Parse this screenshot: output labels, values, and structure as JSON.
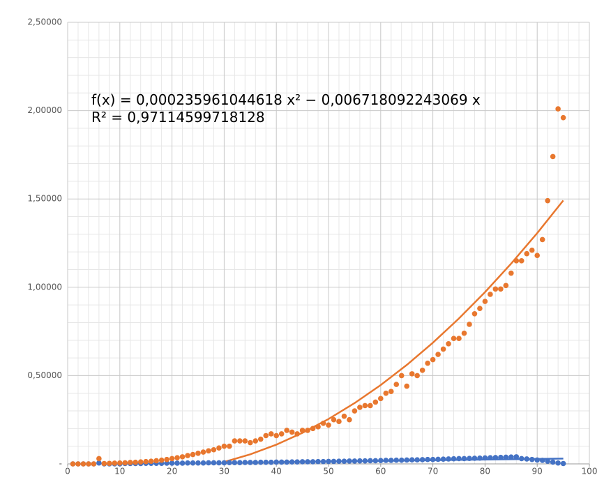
{
  "chart_data": {
    "type": "scatter",
    "annotations": [
      "f(x) = 0,000235961044618 x² − 0,006718092243069 x",
      "R² = 0,97114599718128"
    ],
    "xlim": [
      0,
      100
    ],
    "ylim": [
      0,
      2.5
    ],
    "xticks": [
      0,
      10,
      20,
      30,
      40,
      50,
      60,
      70,
      80,
      90,
      100
    ],
    "yticks": [
      {
        "value": 0,
        "label": "-"
      },
      {
        "value": 0.5,
        "label": "0,50000"
      },
      {
        "value": 1,
        "label": "1,00000"
      },
      {
        "value": 1.5,
        "label": "1,50000"
      },
      {
        "value": 2,
        "label": "2,00000"
      },
      {
        "value": 2.5,
        "label": "2,50000"
      }
    ],
    "grid": true,
    "x": [
      1,
      2,
      3,
      4,
      5,
      6,
      7,
      8,
      9,
      10,
      11,
      12,
      13,
      14,
      15,
      16,
      17,
      18,
      19,
      20,
      21,
      22,
      23,
      24,
      25,
      26,
      27,
      28,
      29,
      30,
      31,
      32,
      33,
      34,
      35,
      36,
      37,
      38,
      39,
      40,
      41,
      42,
      43,
      44,
      45,
      46,
      47,
      48,
      49,
      50,
      51,
      52,
      53,
      54,
      55,
      56,
      57,
      58,
      59,
      60,
      61,
      62,
      63,
      64,
      65,
      66,
      67,
      68,
      69,
      70,
      71,
      72,
      73,
      74,
      75,
      76,
      77,
      78,
      79,
      80,
      81,
      82,
      83,
      84,
      85,
      86,
      87,
      88,
      89,
      90,
      91,
      92,
      93,
      94,
      95
    ],
    "series": [
      {
        "color": "#4472c4",
        "values": [
          0,
          0,
          0,
          0,
          0,
          0.005,
          0,
          0,
          0,
          0,
          0.002,
          0.002,
          0.002,
          0.002,
          0.003,
          0.003,
          0.003,
          0.003,
          0.004,
          0.004,
          0.004,
          0.004,
          0.005,
          0.005,
          0.005,
          0.005,
          0.006,
          0.006,
          0.006,
          0.006,
          0.007,
          0.007,
          0.007,
          0.008,
          0.008,
          0.008,
          0.009,
          0.009,
          0.009,
          0.01,
          0.01,
          0.01,
          0.011,
          0.011,
          0.012,
          0.012,
          0.012,
          0.013,
          0.013,
          0.014,
          0.014,
          0.015,
          0.015,
          0.016,
          0.016,
          0.017,
          0.017,
          0.018,
          0.018,
          0.019,
          0.02,
          0.02,
          0.021,
          0.021,
          0.022,
          0.023,
          0.023,
          0.024,
          0.025,
          0.025,
          0.026,
          0.027,
          0.028,
          0.029,
          0.03,
          0.03,
          0.031,
          0.032,
          0.033,
          0.034,
          0.035,
          0.036,
          0.037,
          0.038,
          0.039,
          0.04,
          0.03,
          0.028,
          0.025,
          0.022,
          0.02,
          0.015,
          0.01,
          0.005,
          0.002
        ]
      },
      {
        "color": "#e8772e",
        "values": [
          0,
          0,
          0,
          0,
          0,
          0.03,
          0.002,
          0.003,
          0.004,
          0.005,
          0.006,
          0.008,
          0.009,
          0.011,
          0.013,
          0.015,
          0.018,
          0.021,
          0.025,
          0.03,
          0.035,
          0.04,
          0.047,
          0.053,
          0.06,
          0.067,
          0.074,
          0.08,
          0.09,
          0.1,
          0.1,
          0.13,
          0.13,
          0.13,
          0.12,
          0.13,
          0.14,
          0.16,
          0.17,
          0.16,
          0.17,
          0.19,
          0.18,
          0.17,
          0.19,
          0.19,
          0.2,
          0.21,
          0.23,
          0.22,
          0.25,
          0.24,
          0.27,
          0.25,
          0.3,
          0.32,
          0.33,
          0.33,
          0.35,
          0.37,
          0.4,
          0.41,
          0.45,
          0.5,
          0.44,
          0.51,
          0.5,
          0.53,
          0.57,
          0.59,
          0.62,
          0.65,
          0.68,
          0.71,
          0.71,
          0.74,
          0.79,
          0.85,
          0.88,
          0.92,
          0.96,
          0.99,
          0.99,
          1.01,
          1.08,
          1.15,
          1.15,
          1.19,
          1.21,
          1.18,
          1.27,
          1.49,
          1.74,
          2.01,
          1.96
        ]
      }
    ],
    "trendlines": [
      {
        "color": "#4472c4",
        "x": [
          40,
          95
        ],
        "values": [
          0.01,
          0.03
        ]
      },
      {
        "color": "#e8772e",
        "x": [
          30,
          35,
          40,
          45,
          50,
          55,
          60,
          65,
          70,
          75,
          80,
          85,
          90,
          95
        ],
        "values": [
          0.0109,
          0.054,
          0.1089,
          0.1756,
          0.254,
          0.3443,
          0.4464,
          0.5602,
          0.6859,
          0.8234,
          0.9727,
          1.1338,
          1.3067,
          1.4913
        ]
      }
    ]
  }
}
